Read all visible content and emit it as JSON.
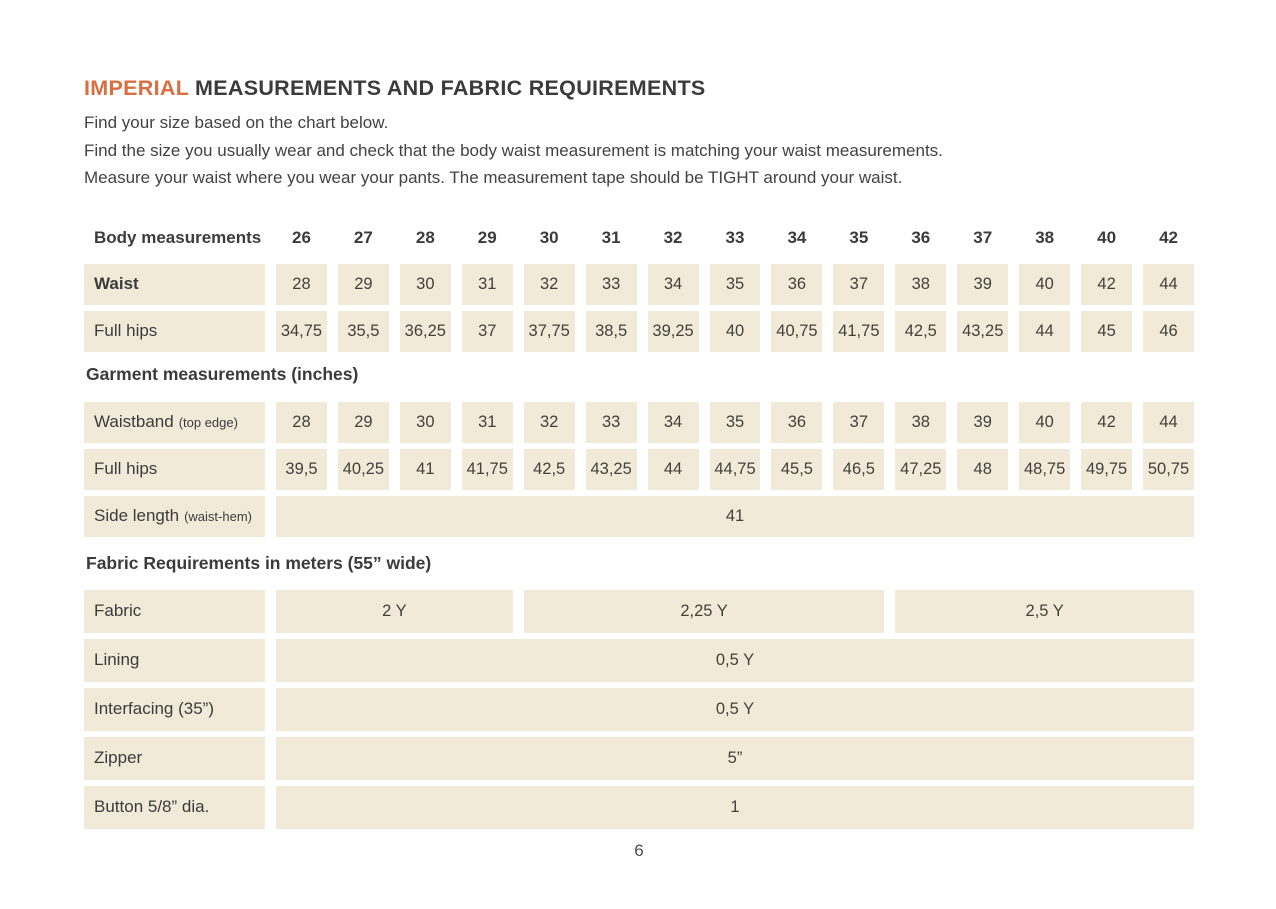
{
  "page": {
    "title_highlight": "IMPERIAL",
    "title_rest": " MEASUREMENTS AND FABRIC REQUIREMENTS",
    "intro_lines": [
      "Find your size based on the chart below.",
      "Find the size you usually wear and check that the body waist measurement is matching your waist measurements.",
      "Measure your waist where you wear your pants. The measurement tape should be TIGHT around your waist."
    ],
    "page_number": "6"
  },
  "colors": {
    "accent": "#D96F41",
    "cell_background": "#F2EAD9",
    "text": "#3C3C3C"
  },
  "body_measurements": {
    "header_label": "Body measurements",
    "sizes": [
      "26",
      "27",
      "28",
      "29",
      "30",
      "31",
      "32",
      "33",
      "34",
      "35",
      "36",
      "37",
      "38",
      "40",
      "42"
    ],
    "rows": [
      {
        "label": "Waist",
        "bold": true,
        "values": [
          "28",
          "29",
          "30",
          "31",
          "32",
          "33",
          "34",
          "35",
          "36",
          "37",
          "38",
          "39",
          "40",
          "42",
          "44"
        ]
      },
      {
        "label": "Full hips",
        "values": [
          "34,75",
          "35,5",
          "36,25",
          "37",
          "37,75",
          "38,5",
          "39,25",
          "40",
          "40,75",
          "41,75",
          "42,5",
          "43,25",
          "44",
          "45",
          "46"
        ]
      }
    ]
  },
  "garment_measurements": {
    "heading": "Garment measurements (inches)",
    "rows": [
      {
        "label": "Waistband",
        "note": "(top edge)",
        "values": [
          "28",
          "29",
          "30",
          "31",
          "32",
          "33",
          "34",
          "35",
          "36",
          "37",
          "38",
          "39",
          "40",
          "42",
          "44"
        ]
      },
      {
        "label": "Full hips",
        "values": [
          "39,5",
          "40,25",
          "41",
          "41,75",
          "42,5",
          "43,25",
          "44",
          "44,75",
          "45,5",
          "46,5",
          "47,25",
          "48",
          "48,75",
          "49,75",
          "50,75"
        ]
      }
    ],
    "side_length_row": {
      "label": "Side length",
      "note": "(waist-hem)",
      "value": "41"
    }
  },
  "fabric_requirements": {
    "heading": "Fabric Requirements in meters (55” wide)",
    "fabric_row": {
      "label": "Fabric",
      "cells": [
        {
          "value": "2 Y",
          "span": 4
        },
        {
          "value": "2,25 Y",
          "span": 6
        },
        {
          "value": "2,5 Y",
          "span": 5
        }
      ]
    },
    "rows": [
      {
        "label": "Lining",
        "value": "0,5 Y"
      },
      {
        "label": "Interfacing (35”)",
        "value": "0,5 Y"
      },
      {
        "label": "Zipper",
        "value": "5”"
      },
      {
        "label": "Button 5/8” dia.",
        "value": "1"
      }
    ]
  }
}
